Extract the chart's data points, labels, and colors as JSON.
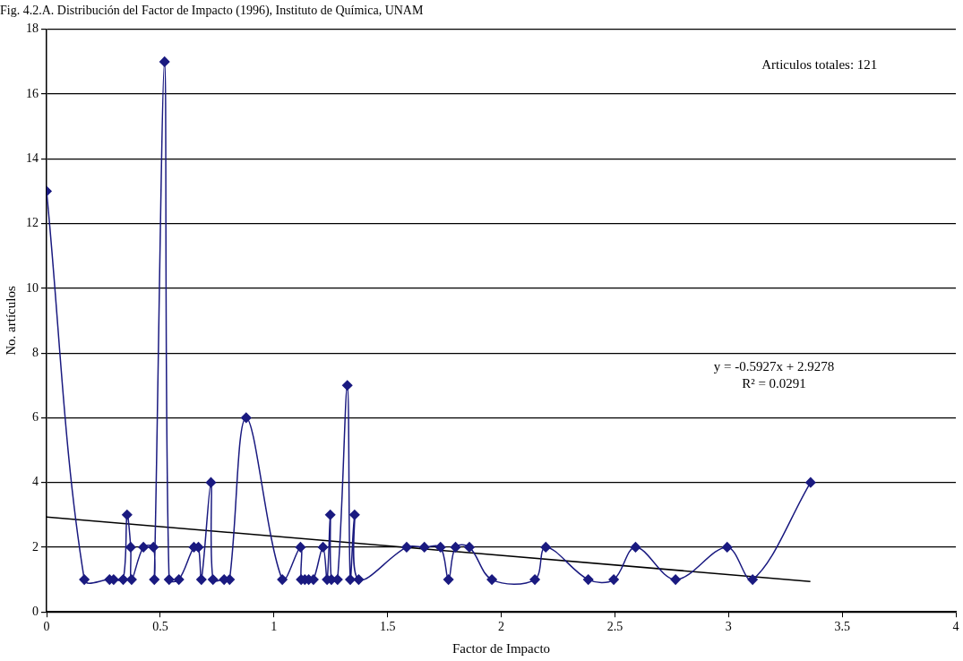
{
  "chart_data": {
    "type": "line",
    "title": "Fig. 4.2.A. Distribución del Factor de Impacto (1996), Instituto de Química, UNAM",
    "xlabel": "Factor de Impacto",
    "ylabel": "No. artículos",
    "x": [
      0,
      0.166,
      0.277,
      0.295,
      0.337,
      0.354,
      0.37,
      0.374,
      0.426,
      0.47,
      0.474,
      0.519,
      0.539,
      0.582,
      0.648,
      0.668,
      0.681,
      0.723,
      0.732,
      0.781,
      0.805,
      0.878,
      1.037,
      1.117,
      1.12,
      1.136,
      1.153,
      1.174,
      1.216,
      1.234,
      1.248,
      1.253,
      1.28,
      1.323,
      1.336,
      1.355,
      1.373,
      1.584,
      1.662,
      1.733,
      1.768,
      1.799,
      1.86,
      1.959,
      2.148,
      2.196,
      2.383,
      2.495,
      2.591,
      2.767,
      2.994,
      3.106,
      3.361
    ],
    "series": [
      {
        "color": "#1a1a80",
        "values": [
          13,
          1,
          1,
          1,
          1,
          3,
          2,
          1,
          2,
          2,
          1,
          17,
          1,
          1,
          2,
          2,
          1,
          4,
          1,
          1,
          1,
          6,
          1,
          2,
          1,
          1,
          1,
          1,
          2,
          1,
          3,
          1,
          1,
          7,
          1,
          3,
          1,
          2,
          2,
          2,
          1,
          2,
          2,
          1,
          1,
          2,
          1,
          1,
          2,
          1,
          2,
          1,
          4
        ]
      },
      {
        "type": "line",
        "color": "#000000",
        "marker": "none",
        "x": [
          0,
          3.36
        ],
        "values": [
          2.93,
          0.94
        ]
      }
    ],
    "xlim": [
      0,
      4
    ],
    "xticks": [
      0,
      0.5,
      1,
      1.5,
      2,
      2.5,
      3,
      3.5,
      4
    ],
    "ylim": [
      0,
      18
    ],
    "yticks": [
      0,
      2,
      4,
      6,
      8,
      10,
      12,
      14,
      16,
      18
    ],
    "grid": "y",
    "legend": false,
    "marker": "diamond",
    "annotations": [
      {
        "text": "Articulos totales: 121"
      },
      {
        "text": "y = -0.5927x + 2.9278"
      },
      {
        "text": "R² = 0.0291"
      }
    ]
  }
}
